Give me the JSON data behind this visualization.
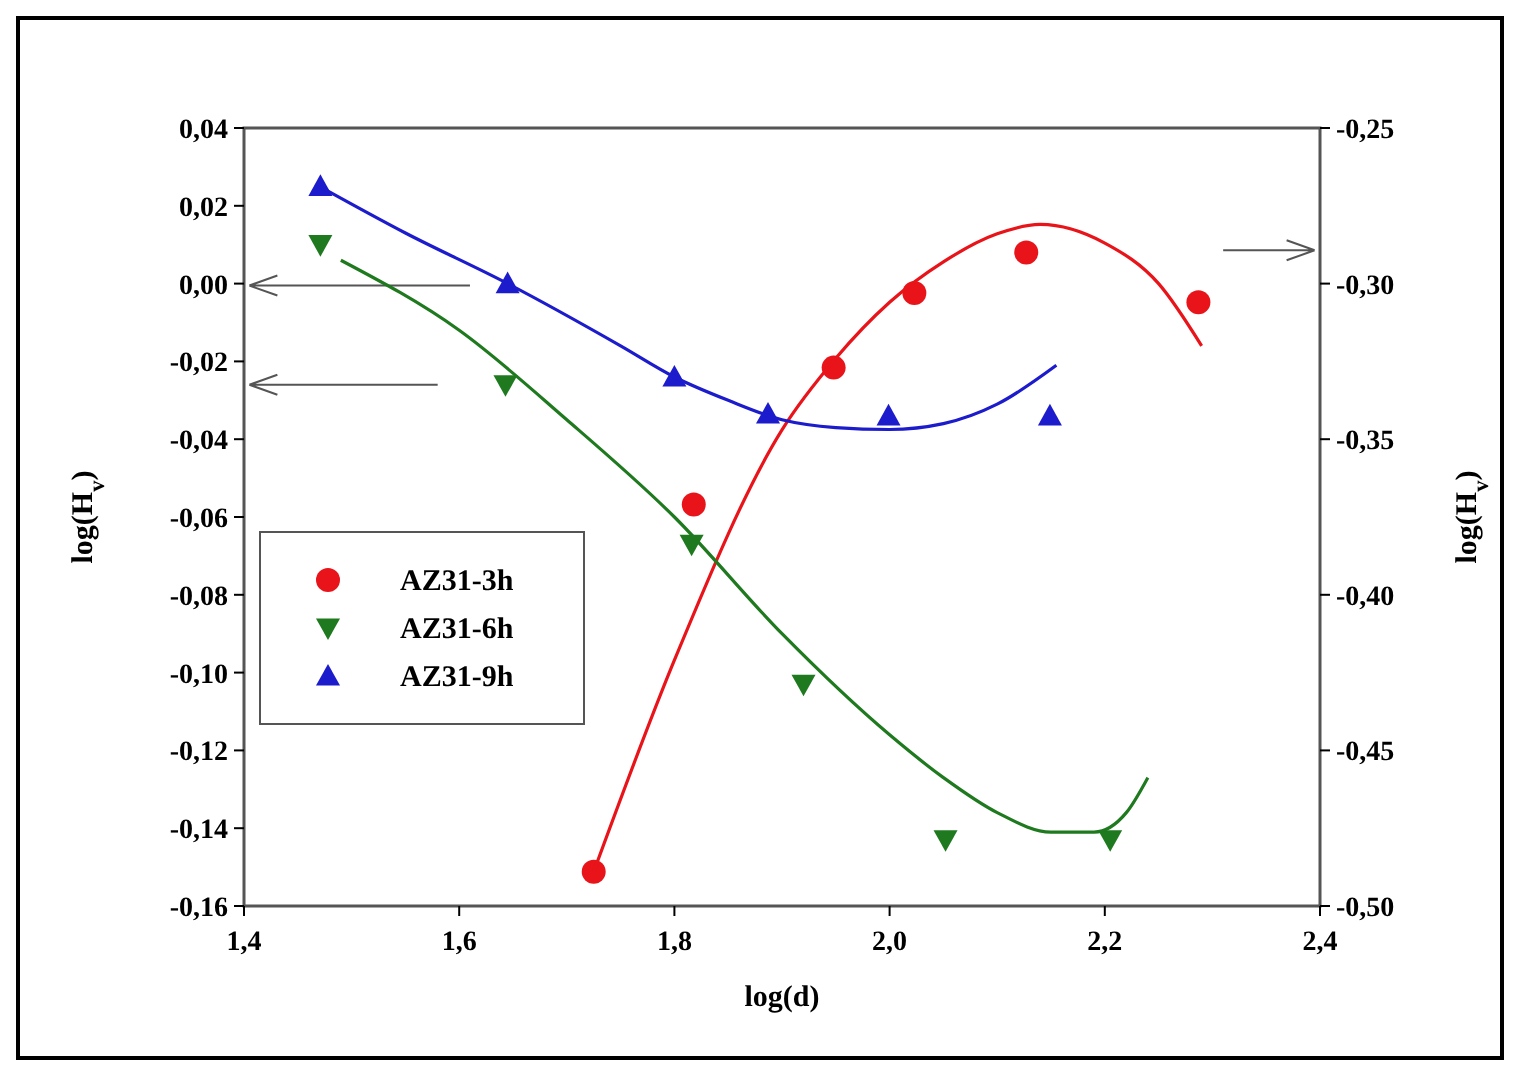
{
  "chart_data": {
    "type": "scatter",
    "xlabel": "log(d)",
    "ylabel": "log(H$_{v}$)",
    "y2label": "log(H$_{v}$)",
    "xlim": [
      1.4,
      2.4
    ],
    "xticks": [
      {
        "value": 1.4,
        "label": "1,4"
      },
      {
        "value": 1.6,
        "label": "1,6"
      },
      {
        "value": 1.8,
        "label": "1,8"
      },
      {
        "value": 2.0,
        "label": "2,0"
      },
      {
        "value": 2.2,
        "label": "2,2"
      },
      {
        "value": 2.4,
        "label": "2,4"
      }
    ],
    "ylim": [
      -0.16,
      0.04
    ],
    "yticks": [
      {
        "value": -0.16,
        "label": "-0,16"
      },
      {
        "value": -0.14,
        "label": "-0,14"
      },
      {
        "value": -0.12,
        "label": "-0,12"
      },
      {
        "value": -0.1,
        "label": "-0,10"
      },
      {
        "value": -0.08,
        "label": "-0,08"
      },
      {
        "value": -0.06,
        "label": "-0,06"
      },
      {
        "value": -0.04,
        "label": "-0,04"
      },
      {
        "value": -0.02,
        "label": "-0,02"
      },
      {
        "value": 0,
        "label": "0,00"
      },
      {
        "value": 0.02,
        "label": "0,02"
      },
      {
        "value": 0.04,
        "label": "0,04"
      }
    ],
    "y2lim": [
      -0.5,
      -0.25
    ],
    "y2ticks": [
      {
        "value": -0.5,
        "label": "-0,50"
      },
      {
        "value": -0.45,
        "label": "-0,45"
      },
      {
        "value": -0.4,
        "label": "-0,40"
      },
      {
        "value": -0.35,
        "label": "-0,35"
      },
      {
        "value": -0.3,
        "label": "-0,30"
      },
      {
        "value": -0.25,
        "label": "-0,25"
      }
    ],
    "grid": false,
    "legend": "left",
    "series": [
      {
        "name": "AZ31-3h",
        "color": "#e8141a",
        "marker": "circle",
        "axis": "y2",
        "x": [
          1.725,
          1.818,
          1.948,
          2.023,
          2.127,
          2.287
        ],
        "values": [
          -0.489,
          -0.371,
          -0.327,
          -0.303,
          -0.29,
          -0.306
        ]
      },
      {
        "name": "AZ31-6h",
        "color": "#1f7a1f",
        "marker": "triangle-down",
        "x": [
          1.471,
          1.643,
          1.816,
          1.92,
          2.052,
          2.205
        ],
        "values": [
          0.01,
          -0.026,
          -0.067,
          -0.103,
          -0.143,
          -0.143
        ]
      },
      {
        "name": "AZ31-9h",
        "color": "#1c1ccc",
        "marker": "triangle",
        "x": [
          1.471,
          1.645,
          1.8,
          1.887,
          1.999,
          2.149
        ],
        "values": [
          0.025,
          0.0,
          -0.024,
          -0.0335,
          -0.034,
          -0.034
        ]
      },
      {
        "type": "line",
        "color": "#e8141a",
        "axis": "y2",
        "x": [
          1.725,
          1.8,
          1.9,
          1.95,
          2.0,
          2.05,
          2.1,
          2.14,
          2.2,
          2.25,
          2.29
        ],
        "values": [
          -0.489,
          -0.421,
          -0.347,
          -0.324,
          -0.306,
          -0.293,
          -0.284,
          -0.281,
          -0.287,
          -0.3,
          -0.32
        ]
      },
      {
        "type": "line",
        "color": "#1f7a1f",
        "x": [
          1.49,
          1.6,
          1.7,
          1.8,
          1.9,
          2.0,
          2.05,
          2.1,
          2.15,
          2.19,
          2.22,
          2.24
        ],
        "values": [
          0.006,
          -0.012,
          -0.035,
          -0.06,
          -0.09,
          -0.116,
          -0.127,
          -0.136,
          -0.141,
          -0.141,
          -0.136,
          -0.127
        ]
      },
      {
        "type": "line",
        "color": "#1c1ccc",
        "x": [
          1.47,
          1.55,
          1.645,
          1.75,
          1.8,
          1.85,
          1.9,
          1.95,
          2.0,
          2.05,
          2.1,
          2.155
        ],
        "values": [
          0.025,
          0.013,
          0.0,
          -0.016,
          -0.024,
          -0.03,
          -0.035,
          -0.037,
          -0.0375,
          -0.036,
          -0.031,
          -0.021
        ]
      }
    ]
  }
}
